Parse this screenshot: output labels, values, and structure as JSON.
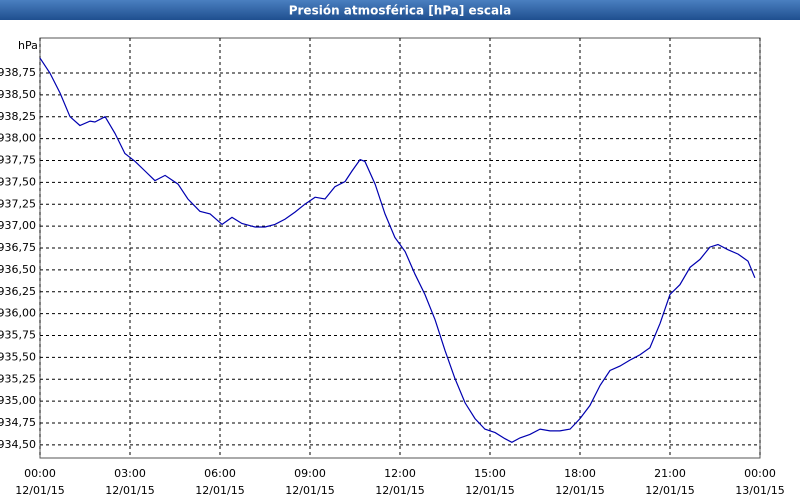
{
  "chart_data": {
    "type": "line",
    "title": "Presión atmosférica [hPa] escala",
    "y_unit": "hPa",
    "x": [
      0,
      0.33,
      0.67,
      1,
      1.33,
      1.67,
      1.83,
      2.17,
      2.5,
      2.83,
      3.17,
      3.5,
      3.83,
      4.17,
      4.6,
      4.93,
      5.33,
      5.67,
      6.07,
      6.4,
      6.73,
      7.17,
      7.5,
      7.83,
      8.17,
      8.5,
      8.83,
      9.17,
      9.5,
      9.83,
      10.17,
      10.4,
      10.67,
      10.83,
      11.17,
      11.5,
      11.83,
      12.17,
      12.5,
      12.83,
      13.17,
      13.5,
      13.83,
      14.17,
      14.5,
      14.83,
      15.17,
      15.5,
      15.73,
      16,
      16.33,
      16.67,
      17,
      17.33,
      17.67,
      18,
      18.33,
      18.67,
      19,
      19.33,
      19.67,
      20,
      20.33,
      20.67,
      21,
      21.33,
      21.67,
      22,
      22.33,
      22.6,
      22.93,
      23.27,
      23.6,
      23.83
    ],
    "series": [
      {
        "name": "Presión",
        "color": "#0000b0",
        "values": [
          938.92,
          938.75,
          938.52,
          938.25,
          938.15,
          938.2,
          938.19,
          938.25,
          938.06,
          937.83,
          937.74,
          937.63,
          937.52,
          937.58,
          937.48,
          937.31,
          937.17,
          937.14,
          937.02,
          937.1,
          937.03,
          936.99,
          936.99,
          937.02,
          937.08,
          937.16,
          937.25,
          937.33,
          937.31,
          937.45,
          937.51,
          937.63,
          937.76,
          937.74,
          937.48,
          937.14,
          936.87,
          936.71,
          936.45,
          936.22,
          935.93,
          935.58,
          935.26,
          934.98,
          934.8,
          934.68,
          934.64,
          934.57,
          934.53,
          934.58,
          934.62,
          934.68,
          934.66,
          934.66,
          934.68,
          934.8,
          934.95,
          935.18,
          935.35,
          935.4,
          935.47,
          935.53,
          935.61,
          935.89,
          936.22,
          936.33,
          936.53,
          936.62,
          936.76,
          936.79,
          936.73,
          936.68,
          936.6,
          936.41
        ]
      }
    ],
    "xlim": [
      0,
      24
    ],
    "xticks": [
      {
        "value": 0,
        "label": "00:00",
        "date": "12/01/15"
      },
      {
        "value": 3,
        "label": "03:00",
        "date": "12/01/15"
      },
      {
        "value": 6,
        "label": "06:00",
        "date": "12/01/15"
      },
      {
        "value": 9,
        "label": "09:00",
        "date": "12/01/15"
      },
      {
        "value": 12,
        "label": "12:00",
        "date": "12/01/15"
      },
      {
        "value": 15,
        "label": "15:00",
        "date": "12/01/15"
      },
      {
        "value": 18,
        "label": "18:00",
        "date": "12/01/15"
      },
      {
        "value": 21,
        "label": "21:00",
        "date": "12/01/15"
      },
      {
        "value": 24,
        "label": "00:00",
        "date": "13/01/15"
      }
    ],
    "ylim": [
      934.35,
      939.15
    ],
    "yticks": [
      {
        "value": 934.5,
        "label": "934,50"
      },
      {
        "value": 934.75,
        "label": "934,75"
      },
      {
        "value": 935,
        "label": "935,00"
      },
      {
        "value": 935.25,
        "label": "935,25"
      },
      {
        "value": 935.5,
        "label": "935,50"
      },
      {
        "value": 935.75,
        "label": "935,75"
      },
      {
        "value": 936,
        "label": "936,00"
      },
      {
        "value": 936.25,
        "label": "936,25"
      },
      {
        "value": 936.5,
        "label": "936,50"
      },
      {
        "value": 936.75,
        "label": "936,75"
      },
      {
        "value": 937,
        "label": "937,00"
      },
      {
        "value": 937.25,
        "label": "937,25"
      },
      {
        "value": 937.5,
        "label": "937,50"
      },
      {
        "value": 937.75,
        "label": "937,75"
      },
      {
        "value": 938,
        "label": "938,00"
      },
      {
        "value": 938.25,
        "label": "938,25"
      },
      {
        "value": 938.5,
        "label": "938,50"
      },
      {
        "value": 938.75,
        "label": "938,75"
      }
    ],
    "grid": true
  }
}
